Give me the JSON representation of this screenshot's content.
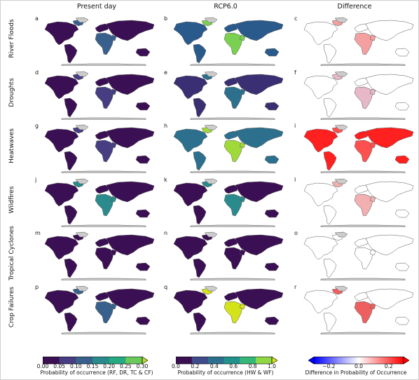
{
  "columns": [
    "Present day",
    "RCP6.0",
    "Difference"
  ],
  "rows": [
    {
      "label": "River Floods",
      "letters": [
        "a",
        "b",
        "c"
      ]
    },
    {
      "label": "Droughts",
      "letters": [
        "d",
        "e",
        "f"
      ]
    },
    {
      "label": "Heatwaves",
      "letters": [
        "g",
        "h",
        "i"
      ]
    },
    {
      "label": "Wildfires",
      "letters": [
        "j",
        "k",
        "l"
      ]
    },
    {
      "label": "Tropical Cyclones",
      "letters": [
        "m",
        "n",
        "o"
      ]
    },
    {
      "label": "Crop Failures",
      "letters": [
        "p",
        "q",
        "r"
      ]
    }
  ],
  "colorbars": {
    "present": {
      "ticks": [
        "0.00",
        "0.05",
        "0.10",
        "0.15",
        "0.20",
        "0.25",
        "0.30"
      ],
      "label": "Probability of occurrence (RF, DR, TC & CF)",
      "colors": [
        "#3b0f53",
        "#463d82",
        "#38608d",
        "#2a8a8c",
        "#25aa82",
        "#6ac959"
      ],
      "extend_color": "#b8de29"
    },
    "rcp": {
      "ticks": [
        "0.0",
        "0.2",
        "0.4",
        "0.6",
        "0.8",
        "1.0"
      ],
      "label": "Probability of occurrence (HW & WF)",
      "colors": [
        "#3b0f53",
        "#3f4b8a",
        "#2d6f8e",
        "#21918c",
        "#35b779",
        "#8fd744"
      ],
      "extend_color": "#d4e21a"
    },
    "diff": {
      "ticks": [
        "−0.2",
        "0.0",
        "0.2"
      ],
      "label": "Difference in Probability of Occurrence",
      "low_color": "#0000ff",
      "high_color": "#ff0000"
    }
  },
  "colors": {
    "map_dark": "#3b0f53",
    "antarctica": "#cccccc",
    "coastline": "#555555",
    "diff_land": "#ffffff",
    "diff_warm": "#ff2020"
  }
}
